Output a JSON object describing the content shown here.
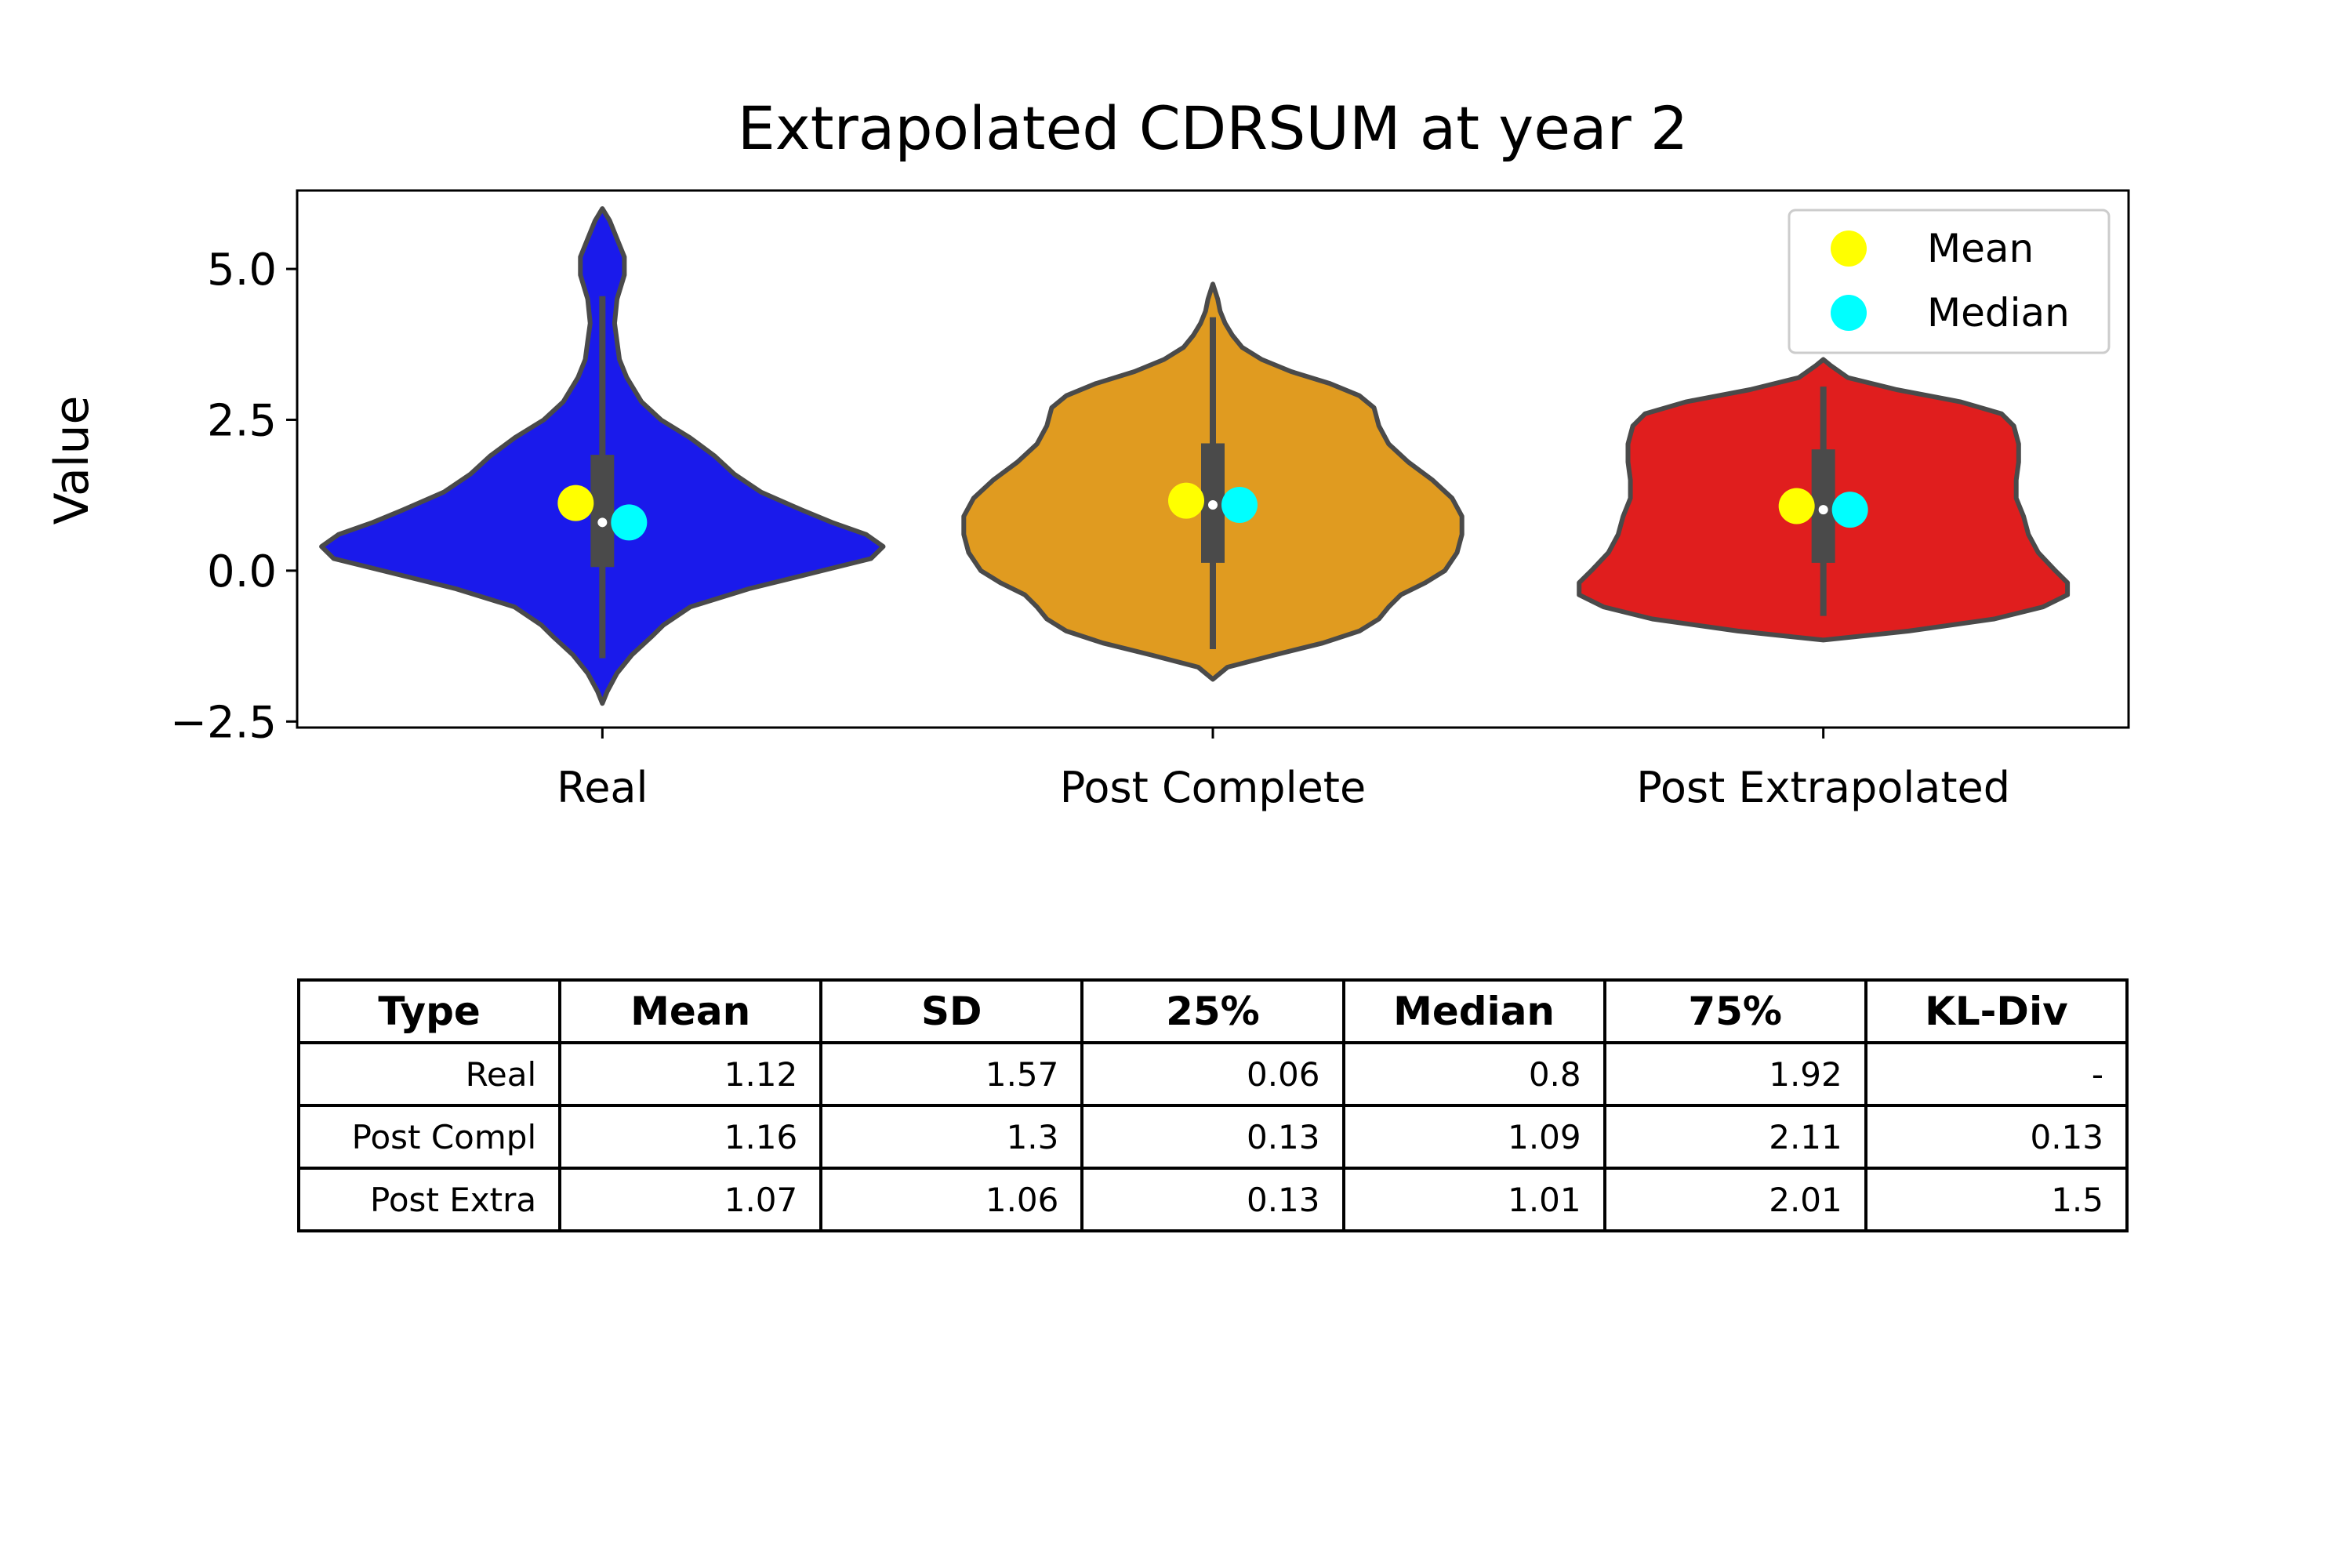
{
  "chart_data": {
    "type": "violin",
    "title": "Extrapolated CDRSUM at year 2",
    "xlabel": "",
    "ylabel": "Value",
    "categories": [
      "Real",
      "Post Complete",
      "Post Extrapolated"
    ],
    "ylim": [
      -2.6,
      6.3
    ],
    "yticks": [
      -2.5,
      0.0,
      2.5,
      5.0
    ],
    "ytick_labels": [
      "−2.5",
      "0.0",
      "2.5",
      "5.0"
    ],
    "grid": false,
    "legend": {
      "placement": "top-right",
      "entries": [
        {
          "label": "Mean",
          "color": "#ffff00"
        },
        {
          "label": "Median",
          "color": "#00ffff"
        }
      ]
    },
    "violins": [
      {
        "name": "Real",
        "color": "#1a1aeb",
        "profile": [
          [
            -2.2,
            0.0
          ],
          [
            -2.0,
            0.02
          ],
          [
            -1.7,
            0.06
          ],
          [
            -1.4,
            0.12
          ],
          [
            -1.1,
            0.2
          ],
          [
            -0.9,
            0.25
          ],
          [
            -0.6,
            0.36
          ],
          [
            -0.3,
            0.6
          ],
          [
            0.0,
            0.9
          ],
          [
            0.2,
            1.1
          ],
          [
            0.4,
            1.15
          ],
          [
            0.6,
            1.08
          ],
          [
            0.8,
            0.94
          ],
          [
            1.0,
            0.82
          ],
          [
            1.3,
            0.65
          ],
          [
            1.6,
            0.54
          ],
          [
            1.9,
            0.46
          ],
          [
            2.2,
            0.36
          ],
          [
            2.5,
            0.24
          ],
          [
            2.8,
            0.16
          ],
          [
            3.2,
            0.1
          ],
          [
            3.5,
            0.07
          ],
          [
            3.8,
            0.06
          ],
          [
            4.1,
            0.05
          ],
          [
            4.5,
            0.06
          ],
          [
            4.9,
            0.09
          ],
          [
            5.2,
            0.09
          ],
          [
            5.5,
            0.06
          ],
          [
            5.8,
            0.03
          ],
          [
            6.0,
            0.0
          ]
        ],
        "whisker": [
          -1.45,
          4.55
        ],
        "q1": 0.06,
        "q3": 1.92,
        "median": 0.8,
        "mean": 1.12
      },
      {
        "name": "Post Complete",
        "color": "#e09b20",
        "profile": [
          [
            -1.8,
            0.0
          ],
          [
            -1.6,
            0.06
          ],
          [
            -1.4,
            0.25
          ],
          [
            -1.2,
            0.45
          ],
          [
            -1.0,
            0.6
          ],
          [
            -0.8,
            0.68
          ],
          [
            -0.6,
            0.72
          ],
          [
            -0.4,
            0.77
          ],
          [
            -0.2,
            0.87
          ],
          [
            0.0,
            0.95
          ],
          [
            0.3,
            1.0
          ],
          [
            0.6,
            1.02
          ],
          [
            0.9,
            1.02
          ],
          [
            1.2,
            0.98
          ],
          [
            1.5,
            0.9
          ],
          [
            1.8,
            0.8
          ],
          [
            2.1,
            0.72
          ],
          [
            2.4,
            0.68
          ],
          [
            2.7,
            0.66
          ],
          [
            2.9,
            0.6
          ],
          [
            3.1,
            0.48
          ],
          [
            3.3,
            0.32
          ],
          [
            3.5,
            0.2
          ],
          [
            3.7,
            0.12
          ],
          [
            3.9,
            0.08
          ],
          [
            4.1,
            0.05
          ],
          [
            4.3,
            0.03
          ],
          [
            4.5,
            0.02
          ],
          [
            4.75,
            0.0
          ]
        ],
        "whisker": [
          -1.3,
          4.2
        ],
        "q1": 0.13,
        "q3": 2.11,
        "median": 1.09,
        "mean": 1.16
      },
      {
        "name": "Post Extrapolated",
        "color": "#e01e1e",
        "profile": [
          [
            -1.15,
            0.0
          ],
          [
            -1.0,
            0.35
          ],
          [
            -0.8,
            0.7
          ],
          [
            -0.6,
            0.9
          ],
          [
            -0.4,
            1.0
          ],
          [
            -0.2,
            1.0
          ],
          [
            0.0,
            0.95
          ],
          [
            0.3,
            0.88
          ],
          [
            0.6,
            0.84
          ],
          [
            0.9,
            0.82
          ],
          [
            1.2,
            0.79
          ],
          [
            1.5,
            0.79
          ],
          [
            1.8,
            0.8
          ],
          [
            2.1,
            0.8
          ],
          [
            2.4,
            0.78
          ],
          [
            2.6,
            0.73
          ],
          [
            2.8,
            0.56
          ],
          [
            3.0,
            0.3
          ],
          [
            3.2,
            0.1
          ],
          [
            3.4,
            0.03
          ],
          [
            3.5,
            0.0
          ]
        ],
        "whisker": [
          -0.75,
          3.05
        ],
        "q1": 0.13,
        "q3": 2.01,
        "median": 1.01,
        "mean": 1.07
      }
    ],
    "table": {
      "headers": [
        "Type",
        "Mean",
        "SD",
        "25%",
        "Median",
        "75%",
        "KL-Div"
      ],
      "rows": [
        [
          "Real",
          "1.12",
          "1.57",
          "0.06",
          "0.8",
          "1.92",
          "-"
        ],
        [
          "Post Compl",
          "1.16",
          "1.3",
          "0.13",
          "1.09",
          "2.11",
          "0.13"
        ],
        [
          "Post Extra",
          "1.07",
          "1.06",
          "0.13",
          "1.01",
          "2.01",
          "1.5"
        ]
      ]
    }
  }
}
